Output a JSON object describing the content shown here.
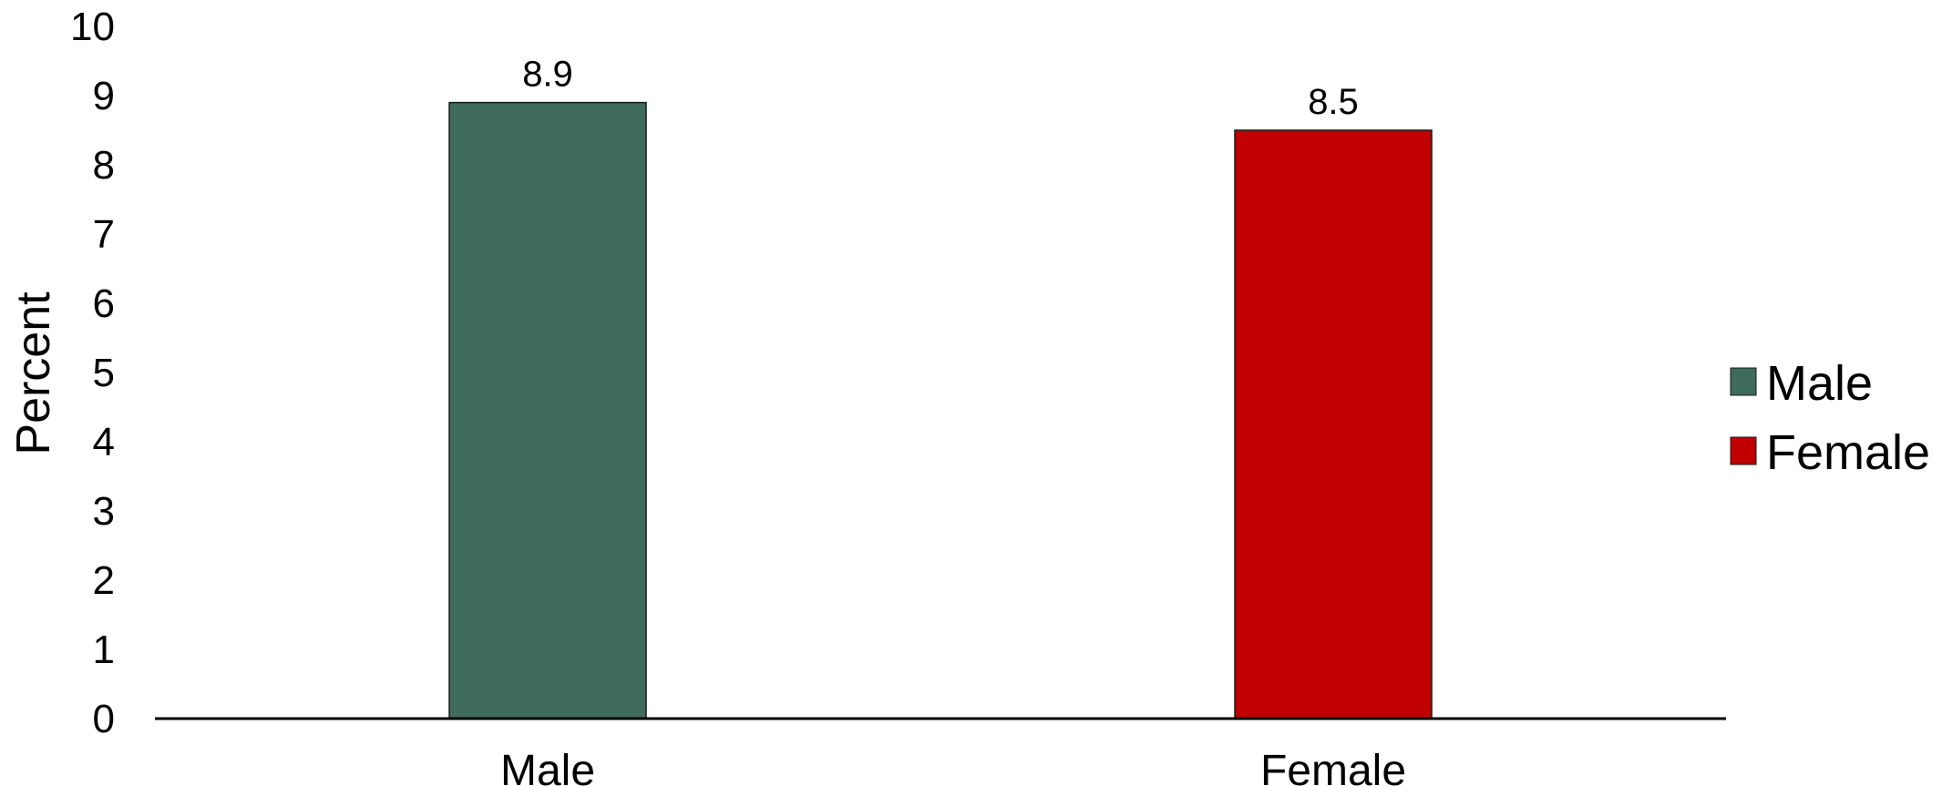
{
  "chart_data": {
    "type": "bar",
    "title": "",
    "xlabel": "",
    "ylabel": "Percent",
    "ylim": [
      0,
      10
    ],
    "yticks": [
      0,
      1,
      2,
      3,
      4,
      5,
      6,
      7,
      8,
      9,
      10
    ],
    "categories": [
      "Male",
      "Female"
    ],
    "values": [
      8.9,
      8.5
    ],
    "data_labels": [
      "8.9",
      "8.5"
    ],
    "colors": [
      "#3e6b5c",
      "#c00000"
    ],
    "grid": false,
    "legend": {
      "position": "right",
      "entries": [
        {
          "label": "Male",
          "color": "#3e6b5c"
        },
        {
          "label": "Female",
          "color": "#c00000"
        }
      ]
    }
  }
}
